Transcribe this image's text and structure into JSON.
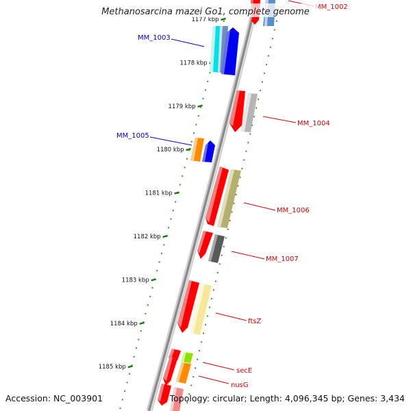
{
  "title": "Methanosarcina mazei Go1, complete genome",
  "footer": {
    "accession": "Accession: NC_003901",
    "summary": "Topology: circular; Length: 4,096,345 bp; Genes: 3,434"
  },
  "colors": {
    "backbone": "#8a8a8a",
    "tick_mark": "#1a7a1a",
    "dotted_track": "#2a9a2a",
    "label_reverse": "#0000cc",
    "label_forward": "#dd0000"
  },
  "axis": {
    "unit": "kbp",
    "ticks": [
      {
        "label": "1177 kbp",
        "kbp": 1177
      },
      {
        "label": "1178 kbp",
        "kbp": 1178
      },
      {
        "label": "1179 kbp",
        "kbp": 1179
      },
      {
        "label": "1180 kbp",
        "kbp": 1180
      },
      {
        "label": "1181 kbp",
        "kbp": 1181
      },
      {
        "label": "1182 kbp",
        "kbp": 1182
      },
      {
        "label": "1183 kbp",
        "kbp": 1183
      },
      {
        "label": "1184 kbp",
        "kbp": 1184
      },
      {
        "label": "1185 kbp",
        "kbp": 1185
      }
    ]
  },
  "genes": [
    {
      "name": "MM_1002",
      "strand": "forward",
      "color": "#ff0000"
    },
    {
      "name": "MM_1003",
      "strand": "reverse",
      "color": "#0000ff"
    },
    {
      "name": "MM_1004",
      "strand": "forward",
      "color": "#ff0000"
    },
    {
      "name": "MM_1005",
      "strand": "reverse",
      "color": "#0000ff"
    },
    {
      "name": "MM_1006",
      "strand": "forward",
      "color": "#ff0000"
    },
    {
      "name": "MM_1007",
      "strand": "forward",
      "color": "#ff0000"
    },
    {
      "name": "ftsZ",
      "strand": "forward",
      "color": "#ff0000"
    },
    {
      "name": "secE",
      "strand": "forward",
      "color": "#ff0000"
    },
    {
      "name": "nusG",
      "strand": "forward",
      "color": "#ff0000"
    }
  ]
}
